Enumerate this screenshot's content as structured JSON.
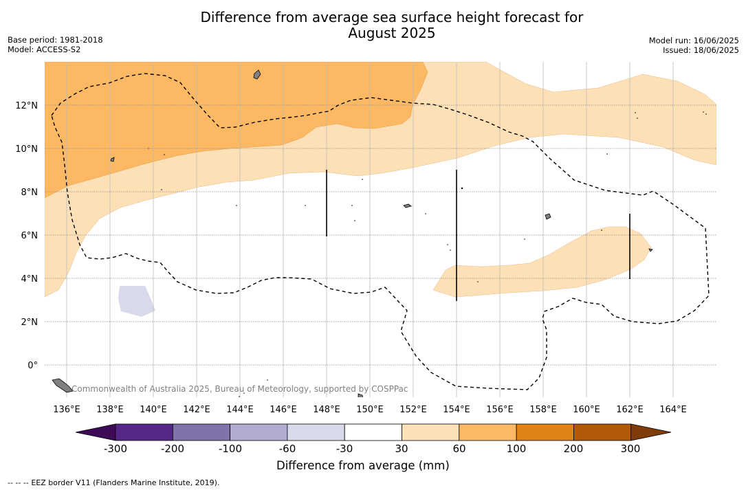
{
  "header": {
    "title_line1": "Difference from average sea surface height forecast for",
    "title_line2": "August 2025",
    "base_period": "Base period: 1981-2018",
    "model": "Model: ACCESS-S2",
    "model_run": "Model run: 16/06/2025",
    "issued": "Issued: 18/06/2025"
  },
  "map": {
    "longitude_labels": [
      "136°E",
      "138°E",
      "140°E",
      "142°E",
      "144°E",
      "146°E",
      "148°E",
      "150°E",
      "152°E",
      "154°E",
      "156°E",
      "158°E",
      "160°E",
      "162°E",
      "164°E"
    ],
    "latitude_labels": [
      "12°N",
      "10°N",
      "8°N",
      "6°N",
      "4°N",
      "2°N",
      "0°"
    ],
    "copyright": "Commonwealth of Australia 2025, Bureau of Meteorology, supported by COSPPac",
    "grid": true,
    "background_color": "#ffffff",
    "land_color": "#808080"
  },
  "colorbar": {
    "title": "Difference from average (mm)",
    "tick_labels": [
      "-300",
      "-200",
      "-100",
      "-60",
      "-30",
      "30",
      "60",
      "100",
      "200",
      "300"
    ],
    "under_color": "#3f0a55",
    "over_color": "#7f3b08",
    "bin_colors": [
      "#542788",
      "#8073ac",
      "#b2abd2",
      "#d8daeb",
      "#ffffff",
      "#fee0b6",
      "#fdb863",
      "#e08214",
      "#b35806"
    ]
  },
  "footer": {
    "legend_symbol": "--  --  --",
    "legend_text": "EEZ border V11 (Flanders Marine Institute, 2019)."
  }
}
